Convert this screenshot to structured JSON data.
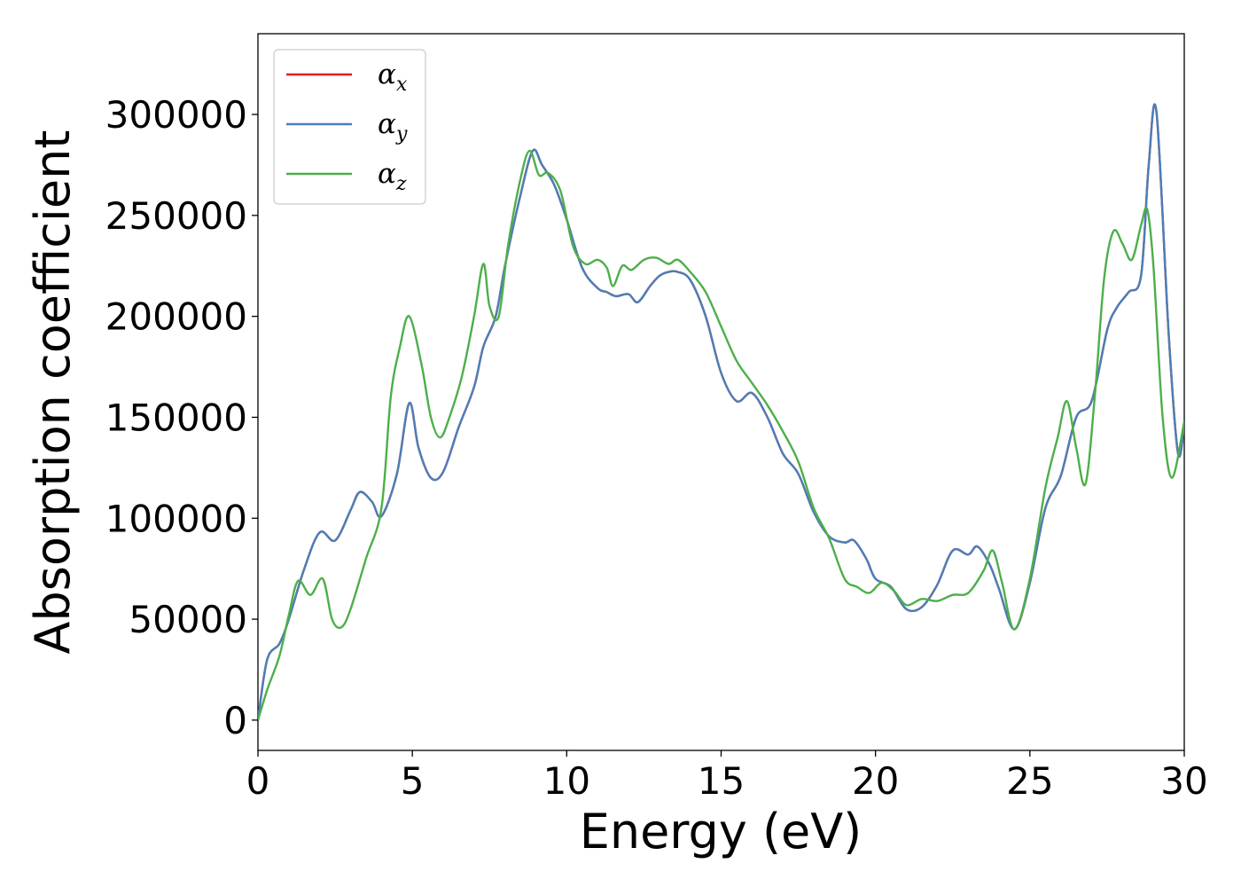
{
  "chart_data": {
    "type": "line",
    "xlabel": "Energy (eV)",
    "ylabel": "Absorption coefficient",
    "xlim": [
      0,
      30
    ],
    "ylim": [
      -15000,
      340000
    ],
    "xticks": [
      "0",
      "5",
      "10",
      "15",
      "20",
      "25",
      "30"
    ],
    "xtick_values": [
      0,
      5,
      10,
      15,
      20,
      25,
      30
    ],
    "yticks": [
      "0",
      "50000",
      "100000",
      "150000",
      "200000",
      "250000",
      "300000"
    ],
    "ytick_values": [
      0,
      50000,
      100000,
      150000,
      200000,
      250000,
      300000
    ],
    "grid": false,
    "legend_position": "upper-left",
    "series": [
      {
        "name": "α",
        "subscript": "x",
        "color": "#e41a1c",
        "x": [
          0,
          0.3,
          0.7,
          1.0,
          1.5,
          2.0,
          2.5,
          3.0,
          3.3,
          3.7,
          4.0,
          4.5,
          4.9,
          5.2,
          5.6,
          6.0,
          6.5,
          7.0,
          7.3,
          7.7,
          8.0,
          8.5,
          8.9,
          9.2,
          9.6,
          10.0,
          10.5,
          11.0,
          11.3,
          11.6,
          12.0,
          12.3,
          12.7,
          13.0,
          13.3,
          13.6,
          14.0,
          14.5,
          15.0,
          15.5,
          16.0,
          16.5,
          17.0,
          17.5,
          18.0,
          18.5,
          19.0,
          19.3,
          19.7,
          20.0,
          20.5,
          21.0,
          21.5,
          22.0,
          22.5,
          23.0,
          23.3,
          23.7,
          24.0,
          24.5,
          25.0,
          25.5,
          26.0,
          26.5,
          27.0,
          27.5,
          27.8,
          28.2,
          28.6,
          28.85,
          29.1,
          29.5,
          29.8,
          30.0
        ],
        "y": [
          0,
          30000,
          38000,
          50000,
          75000,
          93000,
          89000,
          104000,
          113000,
          108000,
          101000,
          122000,
          157000,
          135000,
          120000,
          123000,
          145000,
          165000,
          185000,
          200000,
          225000,
          260000,
          282000,
          275000,
          265000,
          248000,
          224000,
          214000,
          212000,
          210000,
          211000,
          207000,
          215000,
          220000,
          222000,
          222000,
          218000,
          200000,
          172000,
          158000,
          162000,
          150000,
          132000,
          122000,
          103000,
          91000,
          88000,
          89000,
          80000,
          70000,
          66000,
          55000,
          56000,
          67000,
          84000,
          82000,
          86000,
          77000,
          65000,
          45000,
          68000,
          105000,
          121000,
          150000,
          158000,
          193000,
          204000,
          212000,
          220000,
          275000,
          301000,
          190000,
          132000,
          147000
        ]
      },
      {
        "name": "α",
        "subscript": "y",
        "color": "#4a7fb8",
        "x": [
          0,
          0.3,
          0.7,
          1.0,
          1.5,
          2.0,
          2.5,
          3.0,
          3.3,
          3.7,
          4.0,
          4.5,
          4.9,
          5.2,
          5.6,
          6.0,
          6.5,
          7.0,
          7.3,
          7.7,
          8.0,
          8.5,
          8.9,
          9.2,
          9.6,
          10.0,
          10.5,
          11.0,
          11.3,
          11.6,
          12.0,
          12.3,
          12.7,
          13.0,
          13.3,
          13.6,
          14.0,
          14.5,
          15.0,
          15.5,
          16.0,
          16.5,
          17.0,
          17.5,
          18.0,
          18.5,
          19.0,
          19.3,
          19.7,
          20.0,
          20.5,
          21.0,
          21.5,
          22.0,
          22.5,
          23.0,
          23.3,
          23.7,
          24.0,
          24.5,
          25.0,
          25.5,
          26.0,
          26.5,
          27.0,
          27.5,
          27.8,
          28.2,
          28.6,
          28.85,
          29.1,
          29.5,
          29.8,
          30.0
        ],
        "y": [
          0,
          30000,
          38000,
          50000,
          75000,
          93000,
          89000,
          104000,
          113000,
          108000,
          101000,
          122000,
          157000,
          135000,
          120000,
          123000,
          145000,
          165000,
          185000,
          200000,
          225000,
          260000,
          282000,
          275000,
          265000,
          248000,
          224000,
          214000,
          212000,
          210000,
          211000,
          207000,
          215000,
          220000,
          222000,
          222000,
          218000,
          200000,
          172000,
          158000,
          162000,
          150000,
          132000,
          122000,
          103000,
          91000,
          88000,
          89000,
          80000,
          70000,
          66000,
          55000,
          56000,
          67000,
          84000,
          82000,
          86000,
          77000,
          65000,
          45000,
          68000,
          105000,
          121000,
          150000,
          158000,
          193000,
          204000,
          212000,
          220000,
          275000,
          301000,
          190000,
          132000,
          147000
        ]
      },
      {
        "name": "α",
        "subscript": "z",
        "color": "#4daf4a",
        "x": [
          0,
          0.3,
          0.7,
          1.0,
          1.3,
          1.7,
          2.1,
          2.4,
          2.7,
          3.0,
          3.5,
          4.0,
          4.3,
          4.6,
          4.9,
          5.3,
          5.6,
          5.9,
          6.2,
          6.6,
          7.0,
          7.3,
          7.5,
          7.8,
          8.1,
          8.5,
          8.8,
          9.1,
          9.4,
          9.8,
          10.2,
          10.6,
          11.0,
          11.3,
          11.5,
          11.8,
          12.1,
          12.5,
          12.9,
          13.3,
          13.6,
          14.0,
          14.5,
          15.0,
          15.5,
          16.0,
          16.5,
          17.0,
          17.5,
          18.0,
          18.5,
          19.0,
          19.4,
          19.8,
          20.2,
          20.6,
          21.0,
          21.5,
          22.0,
          22.5,
          23.0,
          23.5,
          23.8,
          24.1,
          24.5,
          25.0,
          25.5,
          25.9,
          26.2,
          26.5,
          26.8,
          27.1,
          27.4,
          27.7,
          28.0,
          28.3,
          28.6,
          28.8,
          29.0,
          29.3,
          29.6,
          30.0
        ],
        "y": [
          0,
          15000,
          32000,
          52000,
          69000,
          62000,
          70000,
          50000,
          46000,
          55000,
          80000,
          105000,
          160000,
          185000,
          200000,
          176000,
          150000,
          140000,
          150000,
          170000,
          200000,
          226000,
          205000,
          200000,
          235000,
          268000,
          282000,
          270000,
          271000,
          262000,
          235000,
          226000,
          228000,
          224000,
          215000,
          225000,
          223000,
          228000,
          229000,
          226000,
          228000,
          222000,
          212000,
          195000,
          178000,
          167000,
          156000,
          143000,
          128000,
          105000,
          90000,
          70000,
          66000,
          63000,
          68000,
          64000,
          57000,
          60000,
          59000,
          62000,
          63000,
          74000,
          84000,
          68000,
          45000,
          70000,
          115000,
          140000,
          158000,
          135000,
          117000,
          160000,
          218000,
          242000,
          236000,
          228000,
          245000,
          253000,
          225000,
          150000,
          120000,
          148000
        ]
      }
    ]
  }
}
